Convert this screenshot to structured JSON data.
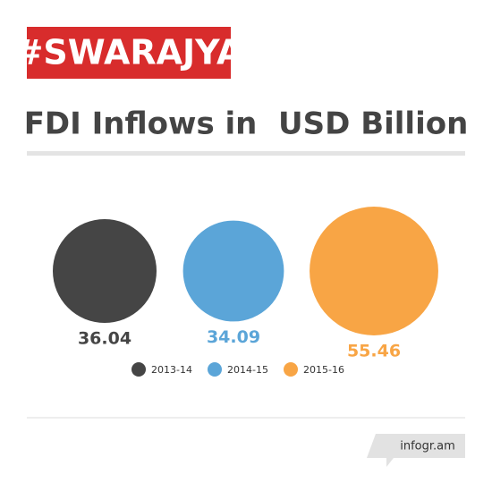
{
  "brand": "#SWARAJYA",
  "footer": "infogr.am",
  "chart_data": {
    "type": "bubble",
    "title": "FDI Inflows in  USD Billion",
    "categories": [
      "2013-14",
      "2014-15",
      "2015-16"
    ],
    "values": [
      36.04,
      34.09,
      55.46
    ],
    "colors": [
      "#454545",
      "#5ba5d8",
      "#f8a545"
    ],
    "legend": "bottom"
  }
}
